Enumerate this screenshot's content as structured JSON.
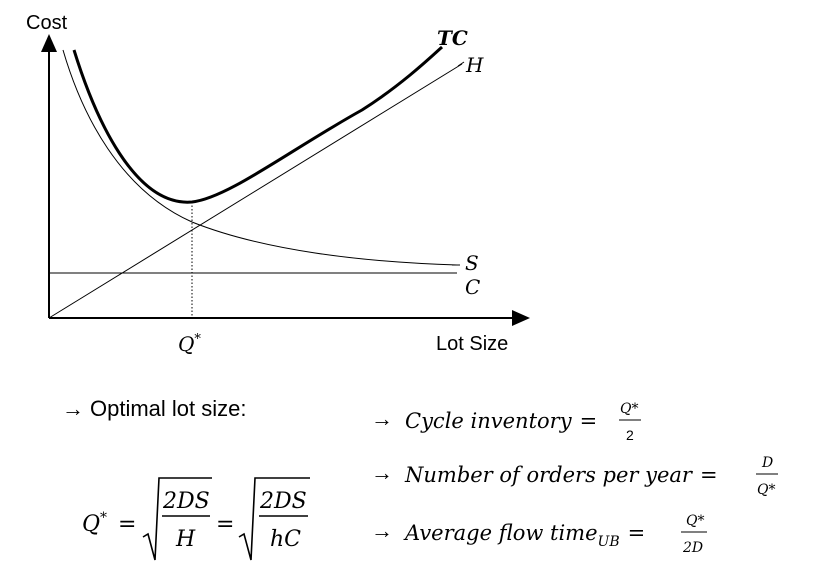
{
  "chart": {
    "y_axis_label": "Cost",
    "x_axis_label": "Lot Size",
    "x_marker": "Q",
    "x_marker_sup": "*",
    "curve_labels": {
      "total": "TC",
      "holding": "H",
      "setup": "S",
      "material": "C"
    }
  },
  "chart_data": {
    "type": "line",
    "title": "",
    "xlabel": "Lot Size",
    "ylabel": "Cost",
    "x_ticks": [
      "Q*"
    ],
    "grid": false,
    "series": [
      {
        "name": "TC",
        "shape": "convex U-shaped, minimum at Q*"
      },
      {
        "name": "H",
        "shape": "straight line through origin, increasing"
      },
      {
        "name": "S",
        "shape": "decreasing hyperbola, crosses H at Q*"
      },
      {
        "name": "C",
        "shape": "horizontal constant line"
      }
    ]
  },
  "formulas": {
    "optimal_heading_arrow": "→",
    "optimal_heading_text": "Optimal lot size:",
    "q_lhs": "Q",
    "q_lhs_sup": "*",
    "equals": "=",
    "frac1_num": "2DS",
    "frac1_den": "H",
    "frac2_num": "2DS",
    "frac2_den": "hC",
    "cycle_arrow": "→",
    "cycle_text": "Cycle inventory",
    "cycle_num": "Q*",
    "cycle_den": "2",
    "orders_arrow": "→",
    "orders_text": "Number of orders per year",
    "orders_num": "D",
    "orders_den": "Q*",
    "flow_arrow": "→",
    "flow_text": "Average flow time",
    "flow_sub": "UB",
    "flow_num": "Q*",
    "flow_den": "2D"
  }
}
